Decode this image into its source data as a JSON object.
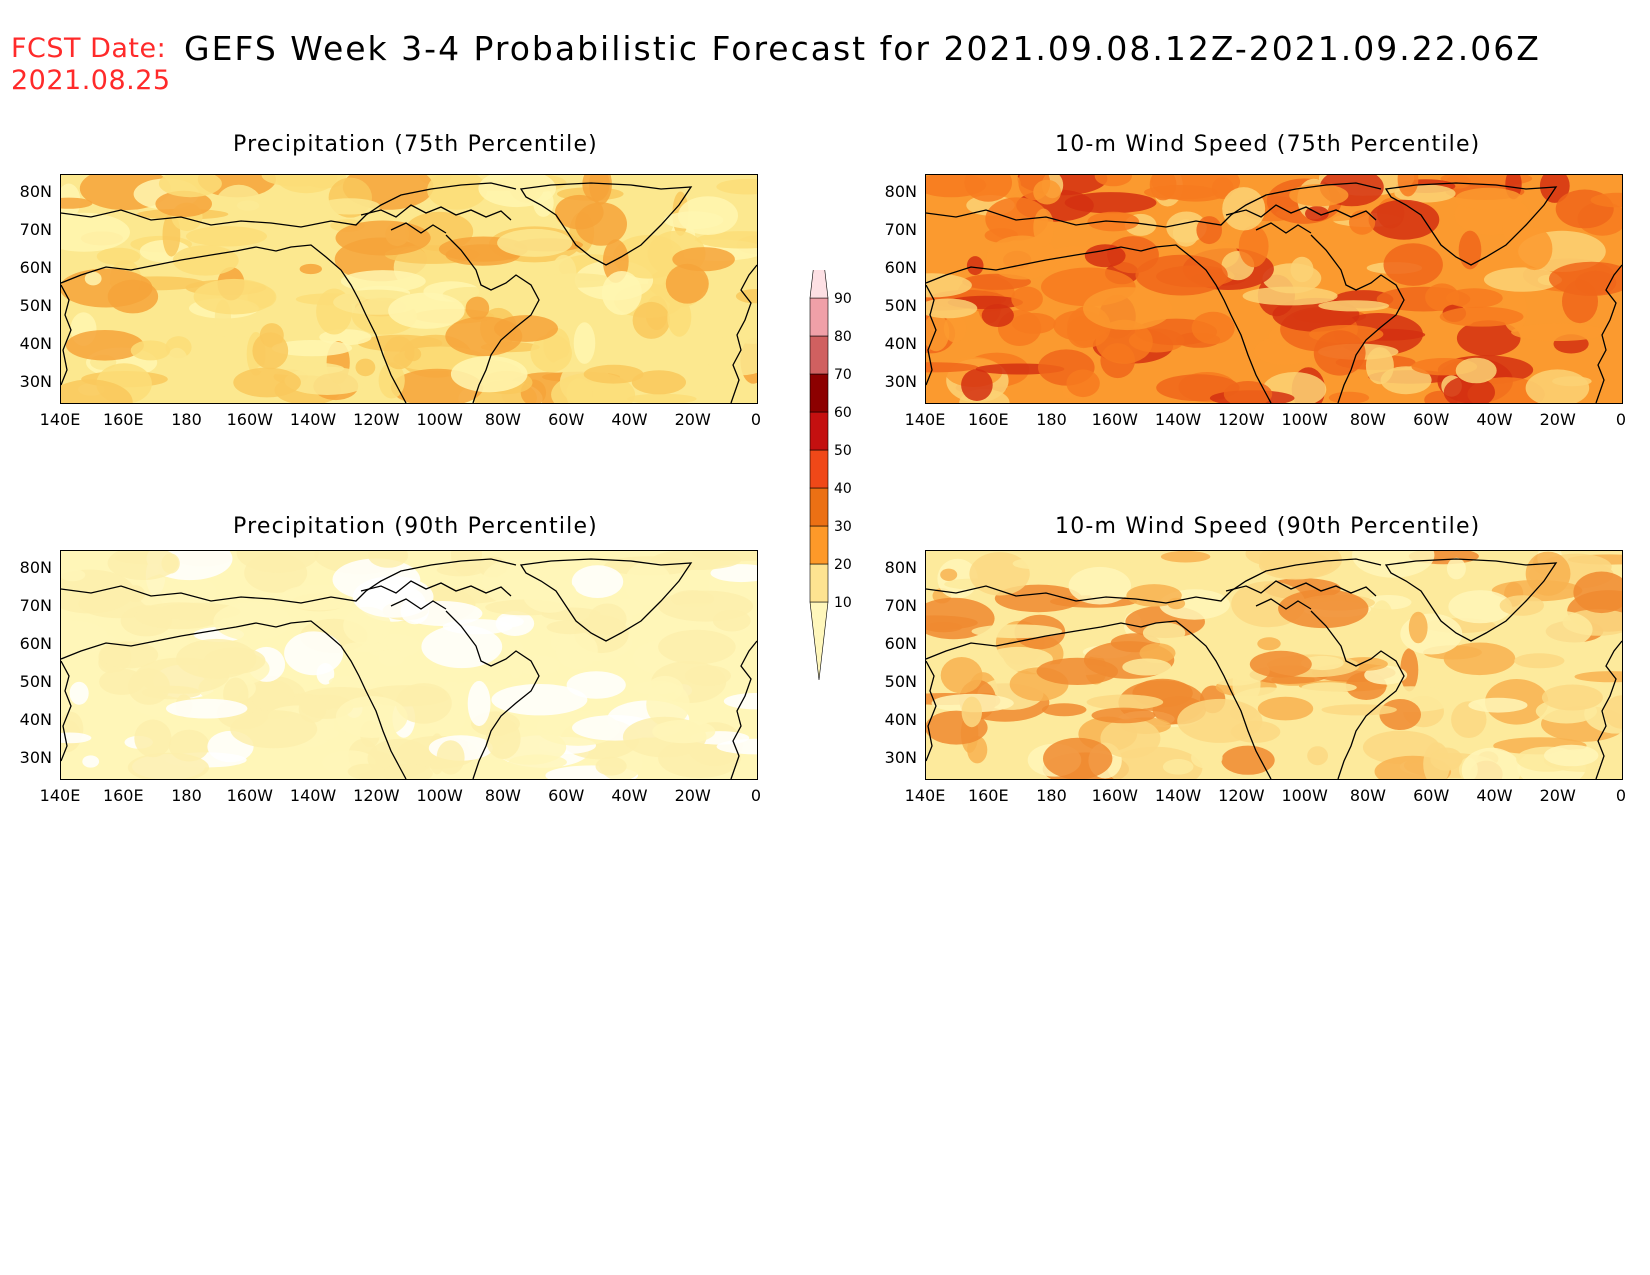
{
  "header": {
    "fcst_label": "FCST Date:",
    "fcst_date": "2021.08.25",
    "title": "GEFS Week 3-4 Probabilistic Forecast for 2021.09.08.12Z-2021.09.22.06Z"
  },
  "axes": {
    "lat_ticks": [
      "80N",
      "70N",
      "60N",
      "50N",
      "40N",
      "30N"
    ],
    "lon_ticks": [
      "140E",
      "160E",
      "180",
      "160W",
      "140W",
      "120W",
      "100W",
      "80W",
      "60W",
      "40W",
      "20W",
      "0"
    ]
  },
  "panels": [
    {
      "id": "precip75",
      "title": "Precipitation (75th Percentile)",
      "palette": [
        "#fff6b0",
        "#fce88f",
        "#fbdd78",
        "#f9c85c",
        "#f6a33a"
      ]
    },
    {
      "id": "wind75",
      "title": "10-m Wind Speed (75th Percentile)",
      "palette": [
        "#fcd274",
        "#fb9a2f",
        "#f77a1e",
        "#f0661a",
        "#d43010"
      ]
    },
    {
      "id": "precip90",
      "title": "Precipitation (90th Percentile)",
      "palette": [
        "#ffffff",
        "#fff6b8",
        "#fdeeab"
      ]
    },
    {
      "id": "wind90",
      "title": "10-m Wind Speed (90th Percentile)",
      "palette": [
        "#fff6b8",
        "#fdea9c",
        "#fbd882",
        "#f8b150",
        "#f08a30"
      ]
    }
  ],
  "colorbar": {
    "levels": [
      "10",
      "20",
      "30",
      "40",
      "50",
      "60",
      "70",
      "80",
      "90"
    ],
    "colors": [
      "#fff7bc",
      "#fee391",
      "#fe9929",
      "#ec7014",
      "#f04818",
      "#c41010",
      "#8c0000",
      "#d06060",
      "#f0a0a8",
      "#fde0e4"
    ]
  }
}
